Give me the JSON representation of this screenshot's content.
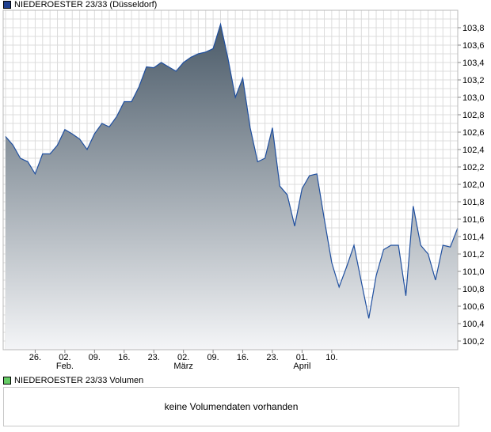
{
  "legend": {
    "price_label": "NIEDEROESTER 23/33 (Düsseldorf)",
    "price_color": "#1f3f8f",
    "volume_label": "NIEDEROESTER 23/33 Volumen",
    "volume_color": "#66cc66"
  },
  "volume_panel": {
    "message": "keine Volumendaten vorhanden"
  },
  "chart_data": {
    "type": "area",
    "title": "",
    "xlabel": "",
    "ylabel": "",
    "ylim": [
      100.1,
      104.0
    ],
    "grid": true,
    "y_axis_position": "right",
    "line_color": "#1f4f9f",
    "fill_top_color": "#4a5a68",
    "fill_bottom_color": "#f4f5f7",
    "y_ticks": [
      "100,2",
      "100,4",
      "100,6",
      "100,8",
      "101,0",
      "101,2",
      "101,4",
      "101,6",
      "101,8",
      "102,0",
      "102,2",
      "102,4",
      "102,6",
      "102,8",
      "103,0",
      "103,2",
      "103,4",
      "103,6",
      "103,8"
    ],
    "y_tick_values": [
      100.2,
      100.4,
      100.6,
      100.8,
      101.0,
      101.2,
      101.4,
      101.6,
      101.8,
      102.0,
      102.2,
      102.4,
      102.6,
      102.8,
      103.0,
      103.2,
      103.4,
      103.6,
      103.8
    ],
    "x_ticks": [
      "26.",
      "02.",
      "09.",
      "16.",
      "23.",
      "02.",
      "09.",
      "16.",
      "23.",
      "01.",
      "10."
    ],
    "x_tick_index": [
      4,
      8,
      12,
      16,
      20,
      24,
      28,
      32,
      36,
      40,
      44
    ],
    "month_labels": [
      {
        "label": "Feb.",
        "index": 8
      },
      {
        "label": "März",
        "index": 24
      },
      {
        "label": "April",
        "index": 40
      }
    ],
    "series": [
      {
        "values": [
          102.55,
          102.45,
          102.3,
          102.26,
          102.12,
          102.35,
          102.35,
          102.45,
          102.63,
          102.58,
          102.52,
          102.4,
          102.58,
          102.7,
          102.66,
          102.78,
          102.95,
          102.95,
          103.12,
          103.35,
          103.34,
          103.4,
          103.35,
          103.3,
          103.4,
          103.46,
          103.5,
          103.52,
          103.56,
          103.84,
          103.45,
          103.0,
          103.22,
          102.65,
          102.26,
          102.3,
          102.65,
          101.98,
          101.88,
          101.52,
          101.95,
          102.1,
          102.12,
          101.6,
          101.1,
          100.82,
          101.05,
          101.3,
          100.88,
          100.46,
          100.95,
          101.25,
          101.3,
          101.3,
          100.72,
          101.75,
          101.3,
          101.2,
          100.9,
          101.3,
          101.28,
          101.5
        ]
      }
    ]
  }
}
